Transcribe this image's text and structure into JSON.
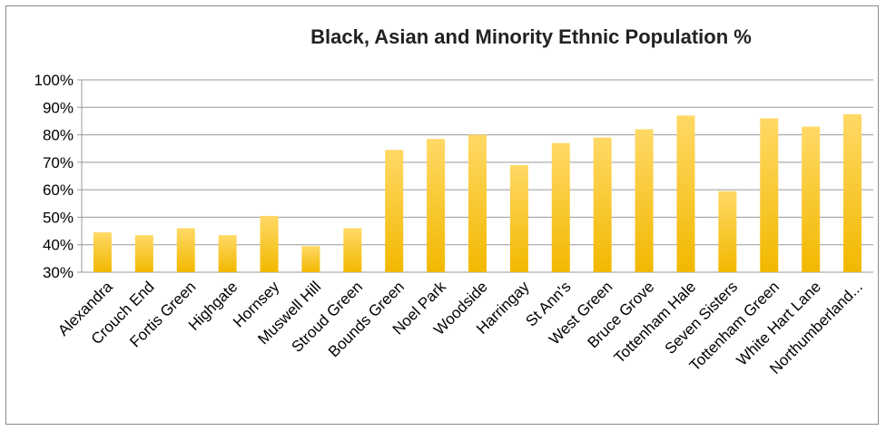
{
  "chart_data": {
    "type": "bar",
    "title": "Black, Asian and Minority Ethnic Population %",
    "xlabel": "",
    "ylabel": "",
    "ylim": [
      30,
      100
    ],
    "yticks": [
      "30%",
      "40%",
      "50%",
      "60%",
      "70%",
      "80%",
      "90%",
      "100%"
    ],
    "grid": true,
    "categories": [
      "Alexandra",
      "Crouch End",
      "Fortis Green",
      "Highgate",
      "Hornsey",
      "Muswell Hill",
      "Stroud Green",
      "Bounds Green",
      "Noel Park",
      "Woodside",
      "Harringay",
      "St Ann's",
      "West Green",
      "Bruce Grove",
      "Tottenham Hale",
      "Seven Sisters",
      "Tottenham Green",
      "White Hart Lane",
      "Northumberland..."
    ],
    "values": [
      44.5,
      43.5,
      46,
      43.5,
      50.5,
      39.5,
      46,
      74.5,
      78.5,
      80,
      69,
      77,
      79,
      82,
      87,
      59.5,
      86,
      83,
      87.5
    ],
    "colors": {
      "bar_light": "#ffd966",
      "bar_dark": "#f2b800",
      "grid": "#9a9a9a"
    }
  }
}
